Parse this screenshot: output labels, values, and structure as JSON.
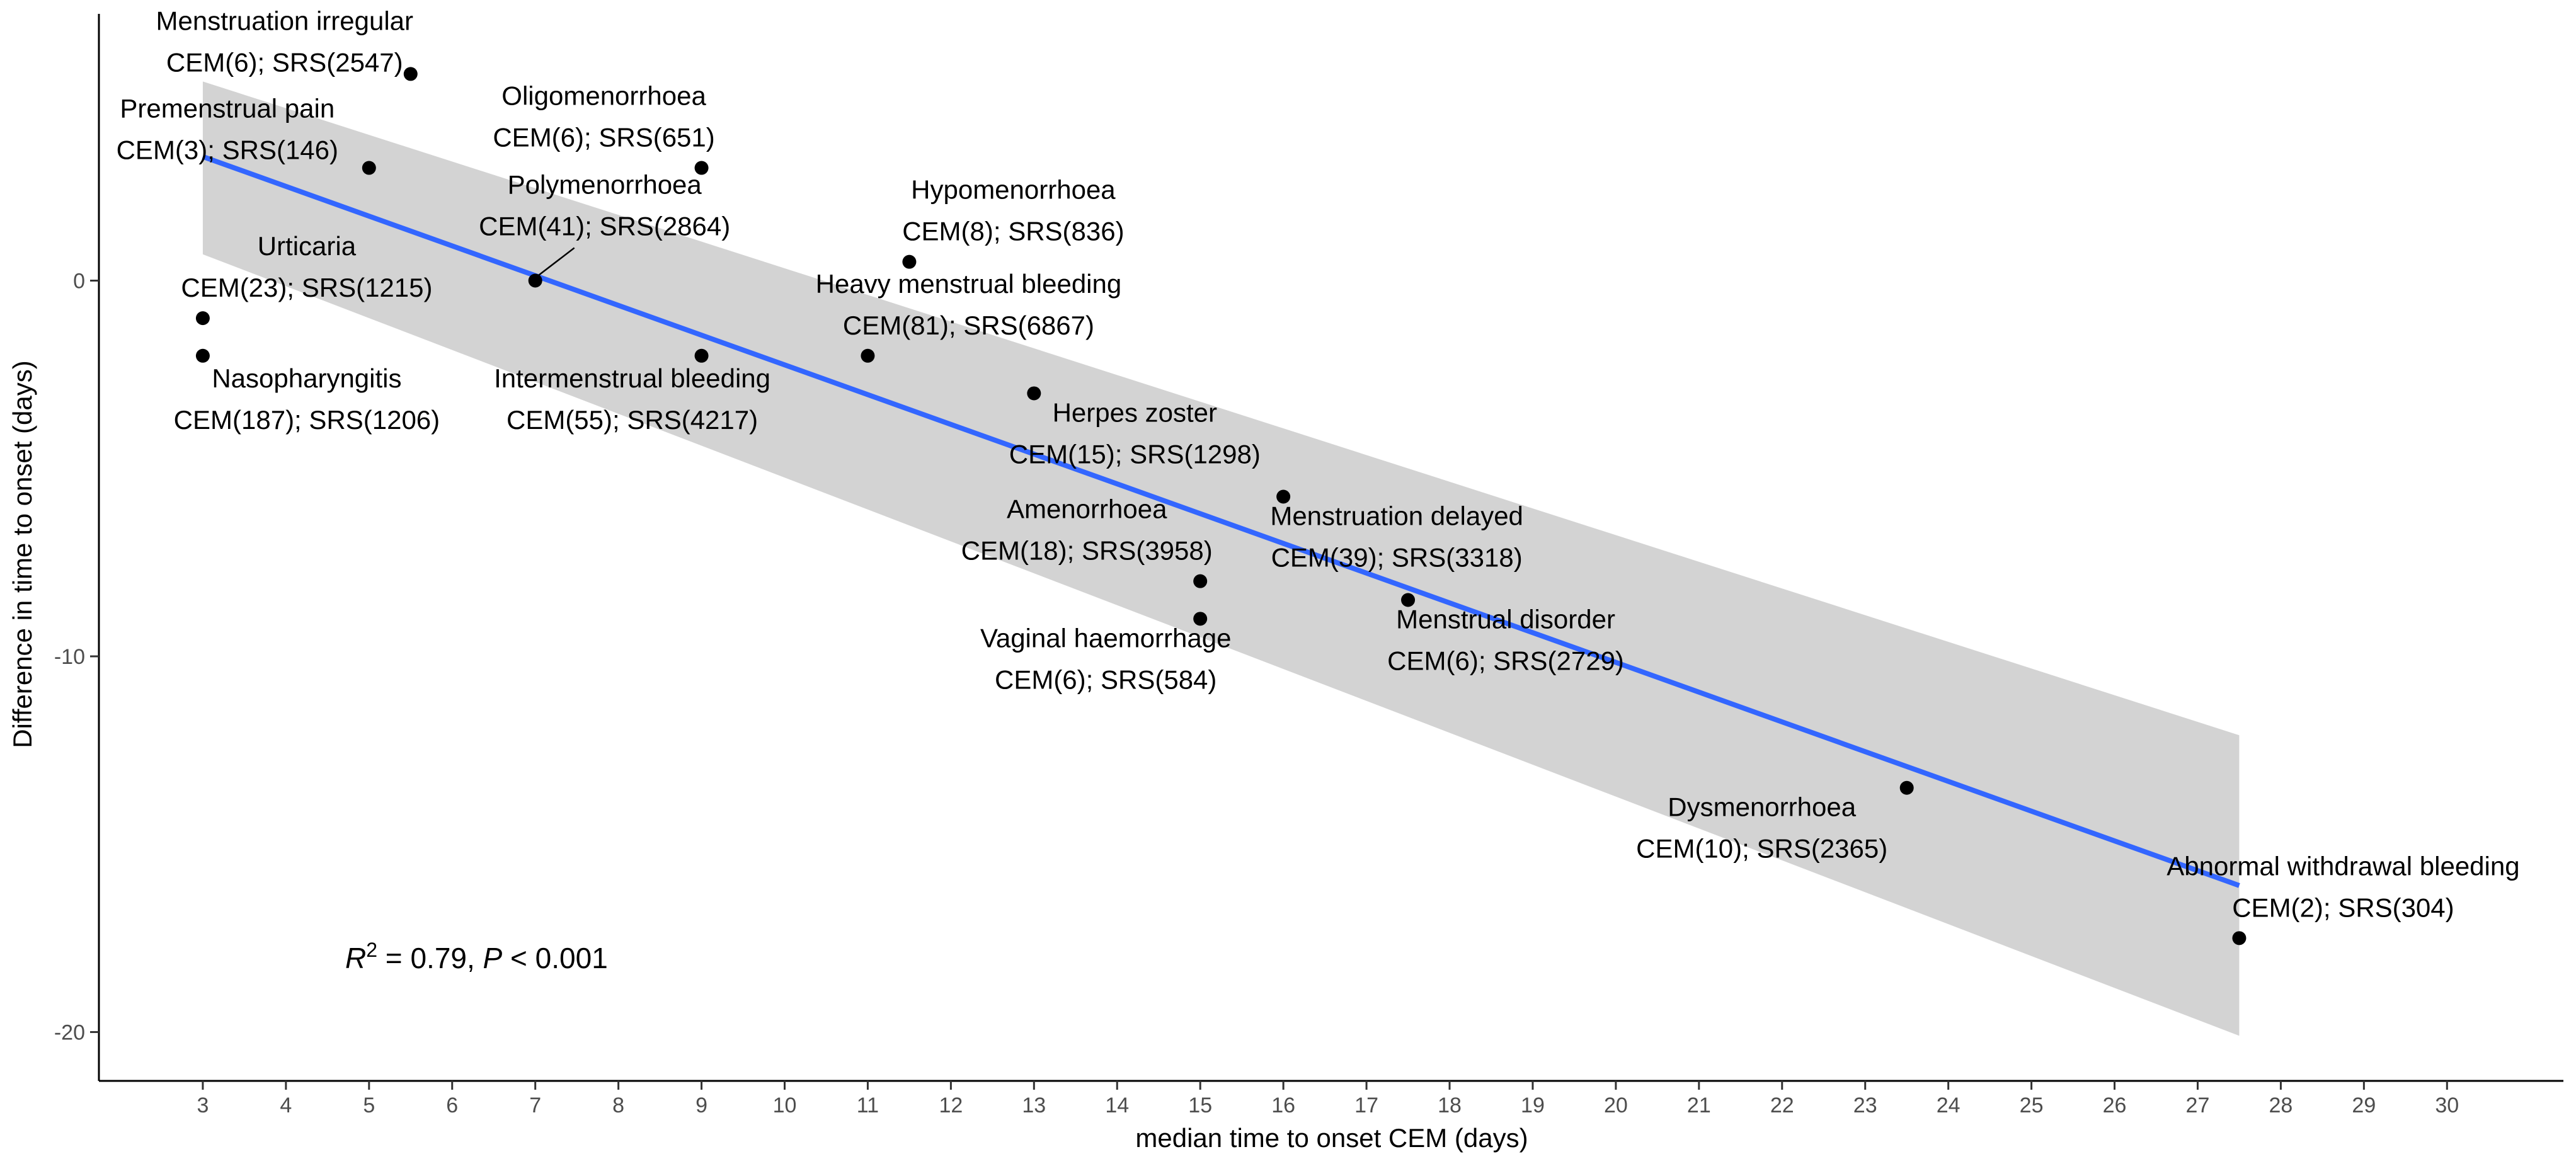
{
  "chart_data": {
    "type": "scatter",
    "title": "",
    "xlabel": "median time to onset CEM (days)",
    "ylabel": "Difference in time to onset (days)",
    "xlim": [
      1.75,
      31.4
    ],
    "ylim": [
      -21.3,
      7.1
    ],
    "xticks": [
      3,
      4,
      5,
      6,
      7,
      8,
      9,
      10,
      11,
      12,
      13,
      14,
      15,
      16,
      17,
      18,
      19,
      20,
      21,
      22,
      23,
      24,
      25,
      26,
      27,
      28,
      29,
      30
    ],
    "yticks": [
      0,
      -10,
      -20
    ],
    "grid": false,
    "colors": {
      "points": "#000000",
      "fit_line": "#3366ff",
      "ribbon": "#d3d3d3"
    },
    "points": [
      {
        "x": 5.5,
        "y": 5.5,
        "name": "Menstruation irregular",
        "counts": "CEM(6); SRS(2547)"
      },
      {
        "x": 5.0,
        "y": 3.0,
        "name": "Premenstrual pain",
        "counts": "CEM(3); SRS(146)"
      },
      {
        "x": 9.0,
        "y": 3.0,
        "name": "Oligomenorrhoea",
        "counts": "CEM(6); SRS(651)"
      },
      {
        "x": 7.0,
        "y": 0.0,
        "name": "Polymenorrhoea",
        "counts": "CEM(41); SRS(2864)"
      },
      {
        "x": 3.0,
        "y": -1.0,
        "name": "Urticaria",
        "counts": "CEM(23); SRS(1215)"
      },
      {
        "x": 3.0,
        "y": -2.0,
        "name": "Nasopharyngitis",
        "counts": "CEM(187); SRS(1206)"
      },
      {
        "x": 11.5,
        "y": 0.5,
        "name": "Hypomenorrhoea",
        "counts": "CEM(8); SRS(836)"
      },
      {
        "x": 11.0,
        "y": -2.0,
        "name": "Heavy menstrual bleeding",
        "counts": "CEM(81); SRS(6867)"
      },
      {
        "x": 9.0,
        "y": -2.0,
        "name": "Intermenstrual bleeding",
        "counts": "CEM(55); SRS(4217)"
      },
      {
        "x": 13.0,
        "y": -3.0,
        "name": "Herpes zoster",
        "counts": "CEM(15); SRS(1298)"
      },
      {
        "x": 16.0,
        "y": -5.75,
        "name": "Menstruation delayed",
        "counts": "CEM(39); SRS(3318)"
      },
      {
        "x": 15.0,
        "y": -8.0,
        "name": "Amenorrhoea",
        "counts": "CEM(18); SRS(3958)"
      },
      {
        "x": 15.0,
        "y": -9.0,
        "name": "Vaginal haemorrhage",
        "counts": "CEM(6); SRS(584)"
      },
      {
        "x": 17.5,
        "y": -8.5,
        "name": "Menstrual disorder",
        "counts": "CEM(6); SRS(2729)"
      },
      {
        "x": 23.5,
        "y": -13.5,
        "name": "Dysmenorrhoea",
        "counts": "CEM(10); SRS(2365)"
      },
      {
        "x": 27.5,
        "y": -17.5,
        "name": "Abnormal withdrawal bleeding",
        "counts": "CEM(2); SRS(304)"
      }
    ],
    "fit": {
      "method": "linear",
      "x_range": [
        3,
        27.5
      ],
      "y_range": [
        3.3,
        -16.1
      ],
      "ci_lower": [
        0.7,
        -20.1
      ],
      "ci_upper": [
        5.3,
        -12.1
      ]
    },
    "annotation": {
      "r_symbol": "R",
      "r_exponent": "2",
      "r_value_text": " = 0.79, ",
      "p_symbol": "P",
      "p_value_text": " < 0.001",
      "position": {
        "x": 5.3,
        "y": -18.0
      }
    }
  }
}
